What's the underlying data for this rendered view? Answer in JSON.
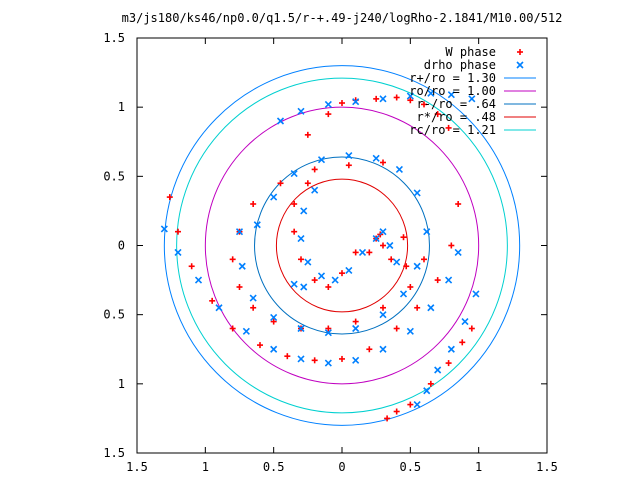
{
  "chart_data": {
    "type": "scatter",
    "title": "m3/js180/ks46/np0.0/q1.5/r-+.49-j240/logRho-2.1841/M10.00/512",
    "xlim": [
      -1.5,
      1.5
    ],
    "ylim": [
      -1.5,
      1.5
    ],
    "x_ticks": [
      -1.5,
      -1,
      -0.5,
      0,
      0.5,
      1,
      1.5
    ],
    "x_tick_labels": [
      "1.5",
      "1",
      "0.5",
      "0",
      "0.5",
      "1",
      "1.5"
    ],
    "y_ticks": [
      1.5,
      1,
      0.5,
      0,
      -0.5,
      -1,
      -1.5
    ],
    "y_tick_labels": [
      "1.5",
      "1",
      "0.5",
      "0",
      "0.5",
      "1",
      "1.5"
    ],
    "grid": false,
    "legend_position": "top-right",
    "legend": [
      {
        "label": "W phase",
        "color": "#ff0000",
        "marker": "plus"
      },
      {
        "label": "drho phase",
        "color": "#0080ff",
        "marker": "cross"
      },
      {
        "label": "r+/ro = 1.30",
        "color": "#0080ff",
        "marker": "line",
        "radius": 1.3
      },
      {
        "label": "ro/ro = 1.00",
        "color": "#c000c0",
        "marker": "line",
        "radius": 1.0
      },
      {
        "label": "r-/ro = .64",
        "color": "#0070c0",
        "marker": "line",
        "radius": 0.64
      },
      {
        "label": "r*/ro = .48",
        "color": "#e00000",
        "marker": "line",
        "radius": 0.48
      },
      {
        "label": "rc/ro = 1.21",
        "color": "#00d0d0",
        "marker": "line",
        "radius": 1.21
      }
    ],
    "series": [
      {
        "name": "W phase",
        "color": "#ff0000",
        "x": [
          -1.26,
          -1.2,
          -1.1,
          -0.95,
          -0.8,
          -0.6,
          -0.4,
          -0.2,
          0.0,
          0.2,
          0.4,
          0.55,
          0.7,
          0.8,
          0.85,
          -0.25,
          -0.1,
          0.0,
          0.1,
          0.25,
          0.4,
          0.5,
          0.6,
          0.7,
          0.78,
          0.3,
          0.05,
          -0.2,
          -0.45,
          -0.65,
          -0.75,
          -0.8,
          -0.75,
          -0.65,
          -0.5,
          -0.3,
          -0.1,
          0.1,
          0.3,
          0.5,
          0.6,
          0.4,
          0.33,
          0.5,
          0.65,
          0.78,
          0.88,
          0.95,
          -0.25,
          -0.35,
          -0.35,
          -0.3,
          -0.2,
          -0.1,
          0.0,
          0.1,
          0.2,
          0.25,
          0.28,
          0.3,
          0.36,
          0.45,
          0.47
        ],
        "y": [
          0.35,
          0.1,
          -0.15,
          -0.4,
          -0.6,
          -0.72,
          -0.8,
          -0.83,
          -0.82,
          -0.75,
          -0.6,
          -0.45,
          -0.25,
          0.0,
          0.3,
          0.8,
          0.95,
          1.03,
          1.05,
          1.06,
          1.07,
          1.05,
          1.02,
          0.95,
          0.85,
          0.6,
          0.58,
          0.55,
          0.45,
          0.3,
          0.1,
          -0.1,
          -0.3,
          -0.45,
          -0.55,
          -0.6,
          -0.6,
          -0.55,
          -0.45,
          -0.3,
          -0.1,
          -1.2,
          -1.25,
          -1.15,
          -1.0,
          -0.85,
          -0.7,
          -0.6,
          0.45,
          0.3,
          0.1,
          -0.1,
          -0.25,
          -0.3,
          -0.2,
          -0.05,
          -0.05,
          0.05,
          0.08,
          0.0,
          -0.1,
          0.06,
          -0.15
        ]
      },
      {
        "name": "drho phase",
        "color": "#0080ff",
        "x": [
          -1.3,
          -1.2,
          -1.05,
          -0.9,
          -0.7,
          -0.5,
          -0.3,
          -0.1,
          0.1,
          0.3,
          0.5,
          0.65,
          0.78,
          0.85,
          -0.45,
          -0.3,
          -0.1,
          0.1,
          0.3,
          0.5,
          0.65,
          0.8,
          0.95,
          -0.75,
          -0.73,
          -0.65,
          -0.5,
          -0.3,
          -0.1,
          0.1,
          0.3,
          0.45,
          0.55,
          0.62,
          0.55,
          0.42,
          0.25,
          0.05,
          -0.15,
          -0.35,
          -0.5,
          -0.62,
          0.55,
          0.62,
          0.7,
          0.8,
          0.9,
          0.98,
          -0.2,
          -0.28,
          -0.3,
          -0.25,
          -0.15,
          -0.05,
          0.05,
          0.15,
          0.25,
          0.3,
          0.35,
          0.4,
          -0.35,
          -0.28
        ],
        "y": [
          0.12,
          -0.05,
          -0.25,
          -0.45,
          -0.62,
          -0.75,
          -0.82,
          -0.85,
          -0.83,
          -0.75,
          -0.62,
          -0.45,
          -0.25,
          -0.05,
          0.9,
          0.97,
          1.02,
          1.04,
          1.06,
          1.08,
          1.1,
          1.09,
          1.06,
          0.1,
          -0.15,
          -0.38,
          -0.52,
          -0.6,
          -0.63,
          -0.6,
          -0.5,
          -0.35,
          -0.15,
          0.1,
          0.38,
          0.55,
          0.63,
          0.65,
          0.62,
          0.52,
          0.35,
          0.15,
          -1.15,
          -1.05,
          -0.9,
          -0.75,
          -0.55,
          -0.35,
          0.4,
          0.25,
          0.05,
          -0.12,
          -0.22,
          -0.25,
          -0.18,
          -0.05,
          0.05,
          0.1,
          0.0,
          -0.12,
          -0.28,
          -0.3
        ]
      }
    ]
  }
}
